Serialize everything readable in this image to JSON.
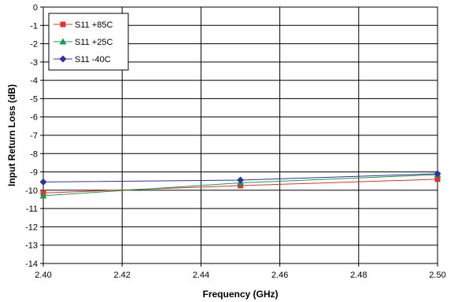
{
  "chart_data": {
    "type": "line",
    "title": "",
    "xlabel": "Frequency (GHz)",
    "ylabel": "Input Return Loss (dB)",
    "xlim": [
      2.4,
      2.5
    ],
    "ylim": [
      -14,
      0
    ],
    "xticks": [
      "2.40",
      "2.42",
      "2.44",
      "2.46",
      "2.48",
      "2.50"
    ],
    "yticks": [
      "0",
      "-1",
      "-2",
      "-3",
      "-4",
      "-5",
      "-6",
      "-7",
      "-8",
      "-9",
      "-10",
      "-11",
      "-12",
      "-13",
      "-14"
    ],
    "grid": true,
    "legend_position": "top-left",
    "series": [
      {
        "name": "S11 +85C",
        "color": "#e03030",
        "marker": "square",
        "x": [
          2.4,
          2.45,
          2.5
        ],
        "y": [
          -10.15,
          -9.75,
          -9.4
        ]
      },
      {
        "name": "S11 +25C",
        "color": "#1a9a50",
        "marker": "triangle",
        "x": [
          2.4,
          2.45,
          2.5
        ],
        "y": [
          -10.3,
          -9.6,
          -9.15
        ]
      },
      {
        "name": "S11 -40C",
        "color": "#3030a0",
        "marker": "diamond",
        "x": [
          2.4,
          2.45,
          2.5
        ],
        "y": [
          -9.55,
          -9.45,
          -9.1
        ]
      }
    ]
  }
}
